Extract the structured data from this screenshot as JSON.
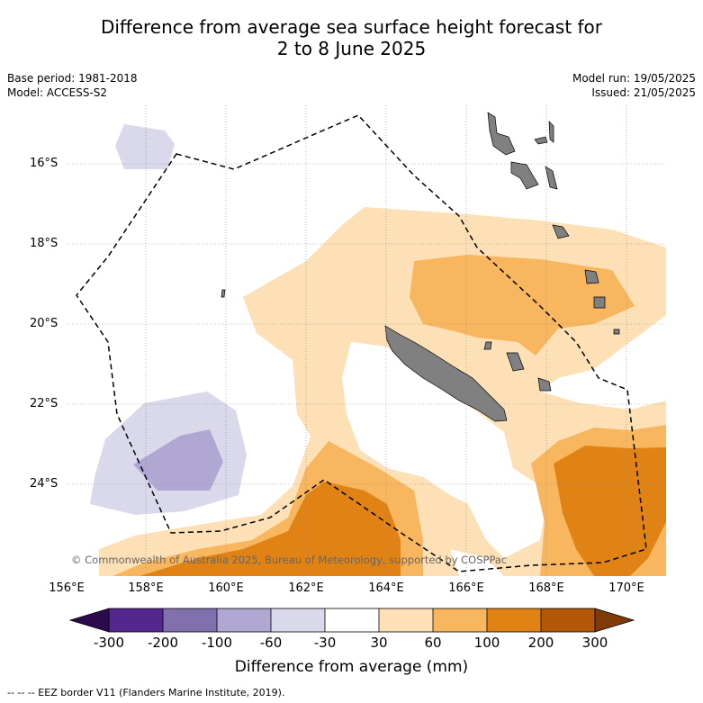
{
  "title_line1": "Difference from average sea surface height forecast for",
  "title_line2": "2 to 8 June 2025",
  "base_period": "Base period: 1981-2018",
  "model": "Model: ACCESS-S2",
  "model_run": "Model run: 19/05/2025",
  "issued": "Issued: 21/05/2025",
  "copyright": "© Commonwealth of Australia 2025, Bureau of Meteorology, supported by COSPPac",
  "map": {
    "lat_labels": [
      "16°S",
      "18°S",
      "20°S",
      "22°S",
      "24°S"
    ],
    "lon_labels": [
      "156°E",
      "158°E",
      "160°E",
      "162°E",
      "164°E",
      "166°E",
      "168°E",
      "170°E"
    ]
  },
  "colorbar": {
    "ticks": [
      "-300",
      "-200",
      "-100",
      "-60",
      "-30",
      "30",
      "60",
      "100",
      "200",
      "300"
    ],
    "label": "Difference from average (mm)",
    "colors": [
      "#2d0a4e",
      "#54278f",
      "#8070ae",
      "#b0a8d2",
      "#d9d9eb",
      "#ffffff",
      "#fee0b6",
      "#f8b65f",
      "#e08314",
      "#b35806",
      "#7f3b08"
    ]
  },
  "footnote": "--  --  -- EEZ border V11 (Flanders Marine Institute, 2019).",
  "colors": {
    "land": "#808080",
    "eez": "#000000",
    "grid": "#888888"
  }
}
